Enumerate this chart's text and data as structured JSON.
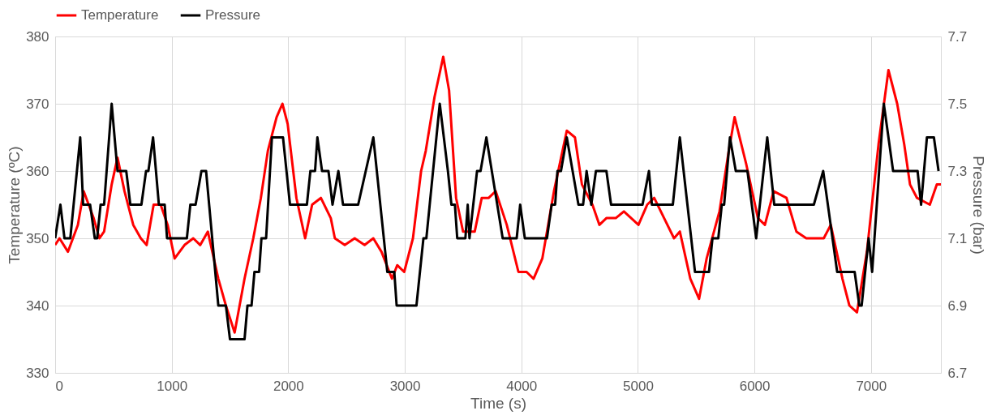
{
  "chart_data": {
    "type": "line",
    "xlabel": "Time (s)",
    "ylabel": "Temperature (ºC)",
    "y2label": "Pressure (bar)",
    "xlim": [
      0,
      7600
    ],
    "xticks": [
      0,
      1000,
      2000,
      3000,
      4000,
      5000,
      6000,
      7000
    ],
    "ylim": [
      330,
      380
    ],
    "yticks": [
      330,
      340,
      350,
      360,
      370,
      380
    ],
    "y2lim": [
      6.7,
      7.7
    ],
    "y2ticks": [
      6.7,
      6.9,
      7.1,
      7.3,
      7.5,
      7.7
    ],
    "grid": true,
    "legend": "top",
    "line_style": "solid",
    "marker": "none",
    "series": [
      {
        "name": "Temperature",
        "color": "#ff0000",
        "x": [
          0,
          37,
          110,
          195,
          245,
          330,
          380,
          420,
          485,
          535,
          595,
          670,
          735,
          785,
          845,
          905,
          965,
          1025,
          1110,
          1185,
          1245,
          1310,
          1400,
          1465,
          1540,
          1625,
          1700,
          1765,
          1825,
          1900,
          1950,
          1995,
          2070,
          2145,
          2205,
          2280,
          2365,
          2400,
          2485,
          2570,
          2655,
          2730,
          2800,
          2890,
          2935,
          2995,
          3070,
          3140,
          3180,
          3255,
          3330,
          3380,
          3440,
          3500,
          3600,
          3660,
          3720,
          3780,
          3875,
          3975,
          4045,
          4105,
          4180,
          4280,
          4390,
          4460,
          4520,
          4610,
          4670,
          4730,
          4810,
          4880,
          5005,
          5080,
          5140,
          5225,
          5310,
          5360,
          5450,
          5525,
          5590,
          5700,
          5780,
          5830,
          5930,
          6030,
          6090,
          6165,
          6275,
          6360,
          6445,
          6520,
          6595,
          6655,
          6755,
          6815,
          6880,
          6965,
          7065,
          7150,
          7225,
          7285,
          7335,
          7395,
          7505,
          7565,
          7600
        ],
        "values": [
          349,
          350,
          348,
          352,
          357,
          353,
          350,
          351,
          358,
          362,
          357,
          352,
          350,
          349,
          355,
          355,
          352,
          347,
          349,
          350,
          349,
          351,
          344,
          340,
          336,
          344,
          350,
          356,
          363,
          368,
          370,
          367,
          356,
          350,
          355,
          356,
          353,
          350,
          349,
          350,
          349,
          350,
          348,
          344,
          346,
          345,
          350,
          360,
          363,
          371,
          377,
          372,
          356,
          351,
          351,
          356,
          356,
          357,
          352,
          345,
          345,
          344,
          347,
          357,
          366,
          365,
          358,
          355,
          352,
          353,
          353,
          354,
          352,
          355,
          356,
          353,
          350,
          351,
          344,
          341,
          347,
          354,
          363,
          368,
          361,
          353,
          352,
          357,
          356,
          351,
          350,
          350,
          350,
          352,
          344,
          340,
          339,
          348,
          364,
          375,
          370,
          364,
          358,
          356,
          355,
          358,
          358
        ]
      },
      {
        "name": "Pressure",
        "color": "#000000",
        "axis": "y2",
        "x": [
          0,
          45,
          80,
          130,
          215,
          240,
          300,
          340,
          360,
          390,
          420,
          485,
          535,
          610,
          645,
          740,
          780,
          800,
          840,
          890,
          940,
          960,
          1130,
          1160,
          1205,
          1255,
          1295,
          1400,
          1465,
          1500,
          1625,
          1650,
          1685,
          1710,
          1750,
          1770,
          1810,
          1860,
          1955,
          2015,
          2160,
          2190,
          2230,
          2250,
          2290,
          2345,
          2380,
          2430,
          2470,
          2600,
          2730,
          2850,
          2910,
          2930,
          3100,
          3160,
          3185,
          3300,
          3370,
          3400,
          3430,
          3450,
          3520,
          3540,
          3555,
          3620,
          3650,
          3700,
          3840,
          3960,
          3990,
          4030,
          4220,
          4260,
          4290,
          4310,
          4340,
          4390,
          4490,
          4530,
          4560,
          4600,
          4640,
          4730,
          4770,
          5040,
          5095,
          5120,
          5300,
          5360,
          5490,
          5610,
          5640,
          5690,
          5720,
          5740,
          5790,
          5840,
          5940,
          6015,
          6110,
          6170,
          6510,
          6590,
          6710,
          6860,
          6900,
          6920,
          6980,
          7010,
          7110,
          7190,
          7400,
          7430,
          7480,
          7540,
          7580
        ],
        "values": [
          7.1,
          7.2,
          7.1,
          7.1,
          7.4,
          7.2,
          7.2,
          7.1,
          7.1,
          7.2,
          7.2,
          7.5,
          7.3,
          7.3,
          7.2,
          7.2,
          7.3,
          7.3,
          7.4,
          7.2,
          7.2,
          7.1,
          7.1,
          7.2,
          7.2,
          7.3,
          7.3,
          6.9,
          6.9,
          6.8,
          6.8,
          6.9,
          6.9,
          7.0,
          7.0,
          7.1,
          7.1,
          7.4,
          7.4,
          7.2,
          7.2,
          7.3,
          7.3,
          7.4,
          7.3,
          7.3,
          7.2,
          7.3,
          7.2,
          7.2,
          7.4,
          7.0,
          7.0,
          6.9,
          6.9,
          7.1,
          7.1,
          7.5,
          7.3,
          7.2,
          7.2,
          7.1,
          7.1,
          7.2,
          7.1,
          7.3,
          7.3,
          7.4,
          7.1,
          7.1,
          7.2,
          7.1,
          7.1,
          7.2,
          7.2,
          7.3,
          7.3,
          7.4,
          7.2,
          7.2,
          7.3,
          7.2,
          7.3,
          7.3,
          7.2,
          7.2,
          7.3,
          7.2,
          7.2,
          7.4,
          7.0,
          7.0,
          7.1,
          7.1,
          7.2,
          7.2,
          7.4,
          7.3,
          7.3,
          7.1,
          7.4,
          7.2,
          7.2,
          7.3,
          7.0,
          7.0,
          6.9,
          6.9,
          7.1,
          7.0,
          7.5,
          7.3,
          7.3,
          7.2,
          7.4,
          7.4,
          7.3
        ]
      }
    ]
  }
}
